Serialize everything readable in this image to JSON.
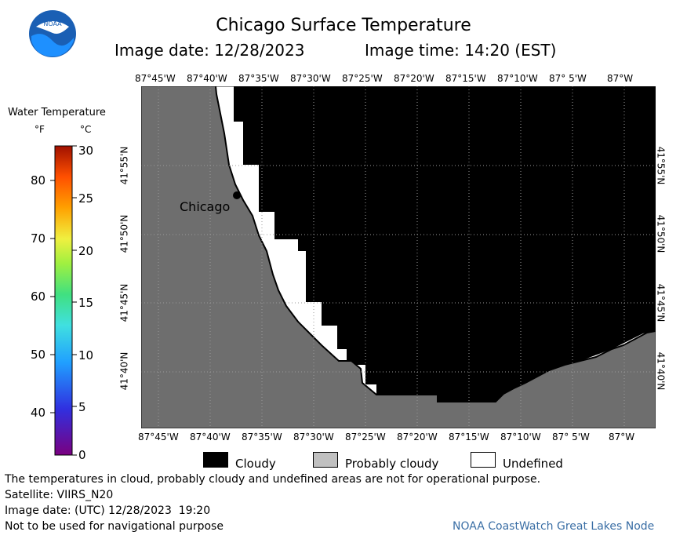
{
  "header": {
    "title": "Chicago Surface Temperature",
    "image_date": "Image date: 12/28/2023",
    "image_time": "Image time: 14:20 (EST)"
  },
  "logo": {
    "text": "NOAA"
  },
  "legend_scale": {
    "title": "Water Temperature",
    "unit_f": "°F",
    "unit_c": "°C",
    "f_ticks": [
      "80",
      "70",
      "60",
      "50",
      "40"
    ],
    "c_ticks": [
      "30",
      "25",
      "20",
      "15",
      "10",
      "5",
      "0"
    ]
  },
  "map": {
    "lon_labels": [
      "87°45'W",
      "87°40'W",
      "87°35'W",
      "87°30'W",
      "87°25'W",
      "87°20'W",
      "87°15'W",
      "87°10'W",
      "87° 5'W",
      "87°W"
    ],
    "lat_labels": [
      "41°55'N",
      "41°50'N",
      "41°45'N",
      "41°40'N"
    ],
    "city_label": "Chicago"
  },
  "category_legend": {
    "cloudy": "Cloudy",
    "probably_cloudy": "Probably cloudy",
    "undefined": "Undefined",
    "colors": {
      "cloudy": "#000000",
      "probably_cloudy": "#c0c0c0",
      "undefined": "#ffffff",
      "land": "#6e6e6e"
    }
  },
  "footer": {
    "disclaimer": "The temperatures in cloud, probably cloudy and undefined areas are not for operational purpose.",
    "satellite": "Satellite: VIIRS_N20",
    "utc_date": "Image date: (UTC) 12/28/2023  19:20",
    "nav_warning": "Not to be used for navigational purpose",
    "credit": "NOAA CoastWatch Great Lakes Node"
  }
}
